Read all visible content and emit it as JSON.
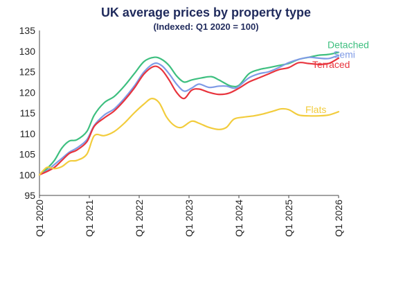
{
  "chart_data": {
    "type": "line",
    "title": "UK average prices by property type",
    "subtitle": "(Indexed: Q1 2020 = 100)",
    "xlabel": "",
    "ylabel": "",
    "ylim": [
      95,
      135
    ],
    "yticks": [
      95,
      100,
      105,
      110,
      115,
      120,
      125,
      130,
      135
    ],
    "xlim": [
      2020.0,
      2026.0
    ],
    "xticks": [
      {
        "x": 2020,
        "label": "Q1 2020"
      },
      {
        "x": 2021,
        "label": "Q1 2021"
      },
      {
        "x": 2022,
        "label": "Q1 2022"
      },
      {
        "x": 2023,
        "label": "Q1 2023"
      },
      {
        "x": 2024,
        "label": "Q1 2024"
      },
      {
        "x": 2025,
        "label": "Q1 2025"
      },
      {
        "x": 2026,
        "label": "Q1 2026"
      }
    ],
    "grid": false,
    "legend": "inline labels at right end of lines",
    "series": [
      {
        "name": "Detached",
        "color": "#3dbf7f",
        "points": [
          [
            2020.0,
            100
          ],
          [
            2020.15,
            101.5
          ],
          [
            2020.3,
            103.5
          ],
          [
            2020.45,
            106.5
          ],
          [
            2020.6,
            108.2
          ],
          [
            2020.75,
            108.5
          ],
          [
            2020.95,
            110.5
          ],
          [
            2021.1,
            114.5
          ],
          [
            2021.3,
            117.5
          ],
          [
            2021.5,
            119
          ],
          [
            2021.7,
            121.5
          ],
          [
            2021.9,
            124.5
          ],
          [
            2022.1,
            127.5
          ],
          [
            2022.3,
            128.5
          ],
          [
            2022.45,
            128
          ],
          [
            2022.6,
            126.5
          ],
          [
            2022.75,
            124
          ],
          [
            2022.9,
            122.5
          ],
          [
            2023.05,
            123
          ],
          [
            2023.25,
            123.5
          ],
          [
            2023.45,
            123.8
          ],
          [
            2023.6,
            123
          ],
          [
            2023.75,
            122
          ],
          [
            2023.85,
            121.5
          ],
          [
            2024.0,
            121.7
          ],
          [
            2024.2,
            124.5
          ],
          [
            2024.4,
            125.5
          ],
          [
            2024.6,
            126
          ],
          [
            2024.8,
            126.5
          ],
          [
            2025.0,
            127
          ],
          [
            2025.2,
            128
          ],
          [
            2025.4,
            128.5
          ],
          [
            2025.6,
            129
          ],
          [
            2025.8,
            129.2
          ],
          [
            2026.0,
            129.7
          ]
        ]
      },
      {
        "name": "Semi",
        "color": "#7f9be6",
        "points": [
          [
            2020.0,
            100
          ],
          [
            2020.15,
            101
          ],
          [
            2020.3,
            102.5
          ],
          [
            2020.45,
            104
          ],
          [
            2020.6,
            105.5
          ],
          [
            2020.75,
            106.5
          ],
          [
            2020.95,
            108.5
          ],
          [
            2021.1,
            112
          ],
          [
            2021.3,
            114.5
          ],
          [
            2021.5,
            116
          ],
          [
            2021.7,
            118.5
          ],
          [
            2021.9,
            121.5
          ],
          [
            2022.1,
            125
          ],
          [
            2022.3,
            127
          ],
          [
            2022.45,
            126.5
          ],
          [
            2022.6,
            124.5
          ],
          [
            2022.75,
            122
          ],
          [
            2022.9,
            120.3
          ],
          [
            2023.05,
            121
          ],
          [
            2023.2,
            122
          ],
          [
            2023.4,
            121.2
          ],
          [
            2023.6,
            121.5
          ],
          [
            2023.75,
            121.5
          ],
          [
            2023.9,
            121
          ],
          [
            2024.0,
            121.5
          ],
          [
            2024.2,
            123.5
          ],
          [
            2024.4,
            124.5
          ],
          [
            2024.6,
            125
          ],
          [
            2024.8,
            126
          ],
          [
            2025.0,
            127.2
          ],
          [
            2025.2,
            128
          ],
          [
            2025.4,
            128.5
          ],
          [
            2025.6,
            128.3
          ],
          [
            2025.8,
            128.2
          ],
          [
            2026.0,
            129
          ]
        ]
      },
      {
        "name": "Terraced",
        "color": "#e8343d",
        "points": [
          [
            2020.0,
            100
          ],
          [
            2020.15,
            100.8
          ],
          [
            2020.3,
            101.8
          ],
          [
            2020.45,
            103.5
          ],
          [
            2020.6,
            105.2
          ],
          [
            2020.75,
            106
          ],
          [
            2020.95,
            108
          ],
          [
            2021.1,
            111.8
          ],
          [
            2021.3,
            113.8
          ],
          [
            2021.5,
            115.5
          ],
          [
            2021.7,
            118
          ],
          [
            2021.9,
            121
          ],
          [
            2022.1,
            124.5
          ],
          [
            2022.3,
            126.3
          ],
          [
            2022.45,
            125.5
          ],
          [
            2022.6,
            123
          ],
          [
            2022.75,
            120
          ],
          [
            2022.9,
            118.5
          ],
          [
            2023.05,
            120.5
          ],
          [
            2023.2,
            120.8
          ],
          [
            2023.4,
            120
          ],
          [
            2023.6,
            119.5
          ],
          [
            2023.8,
            119.8
          ],
          [
            2024.0,
            121
          ],
          [
            2024.2,
            122.5
          ],
          [
            2024.4,
            123.5
          ],
          [
            2024.6,
            124.5
          ],
          [
            2024.8,
            125.5
          ],
          [
            2025.0,
            126
          ],
          [
            2025.2,
            127.2
          ],
          [
            2025.4,
            127
          ],
          [
            2025.6,
            126.8
          ],
          [
            2025.8,
            127
          ],
          [
            2026.0,
            128.3
          ]
        ]
      },
      {
        "name": "Flats",
        "color": "#f2cc3c",
        "points": [
          [
            2020.0,
            100
          ],
          [
            2020.15,
            101.8
          ],
          [
            2020.3,
            101.5
          ],
          [
            2020.45,
            102
          ],
          [
            2020.6,
            103.3
          ],
          [
            2020.75,
            103.5
          ],
          [
            2020.95,
            105
          ],
          [
            2021.1,
            109.5
          ],
          [
            2021.3,
            109.5
          ],
          [
            2021.5,
            110.5
          ],
          [
            2021.7,
            112.5
          ],
          [
            2021.9,
            115
          ],
          [
            2022.1,
            117.2
          ],
          [
            2022.25,
            118.5
          ],
          [
            2022.4,
            117.5
          ],
          [
            2022.55,
            114
          ],
          [
            2022.7,
            112
          ],
          [
            2022.85,
            111.5
          ],
          [
            2023.05,
            113
          ],
          [
            2023.2,
            112.5
          ],
          [
            2023.4,
            111.5
          ],
          [
            2023.6,
            111
          ],
          [
            2023.75,
            111.5
          ],
          [
            2023.9,
            113.5
          ],
          [
            2024.1,
            114
          ],
          [
            2024.3,
            114.3
          ],
          [
            2024.5,
            114.8
          ],
          [
            2024.7,
            115.5
          ],
          [
            2024.85,
            116
          ],
          [
            2025.0,
            115.8
          ],
          [
            2025.2,
            114.5
          ],
          [
            2025.4,
            114.3
          ],
          [
            2025.6,
            114.3
          ],
          [
            2025.8,
            114.5
          ],
          [
            2026.0,
            115.3
          ]
        ]
      }
    ]
  }
}
